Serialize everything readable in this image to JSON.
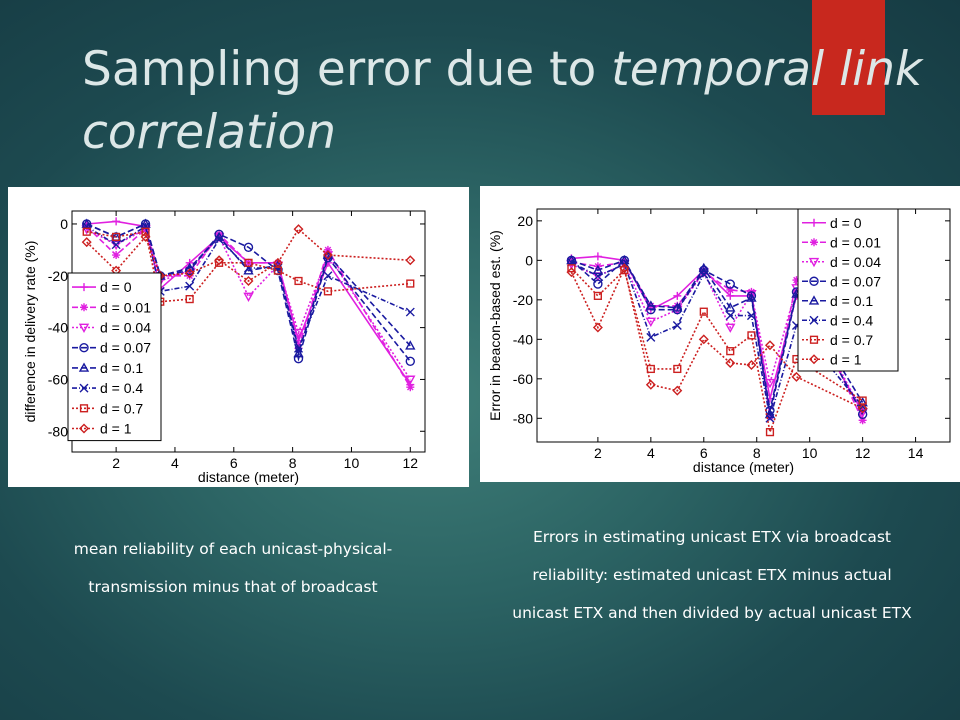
{
  "slide": {
    "title_part1": "Sampling error due to ",
    "title_part2": "temporal link correlation",
    "caption_left_line1": "mean reliability of each unicast-physical-",
    "caption_left_line2": "transmission minus that of broadcast",
    "caption_right_line1": "Errors in estimating unicast ETX via broadcast",
    "caption_right_line2": "reliability: estimated unicast ETX minus actual",
    "caption_right_line3": "unicast ETX and then divided by actual unicast ETX",
    "colors": {
      "accent": "#c8281e",
      "bg_center": "#3f7e78",
      "bg_edge": "#163b43"
    }
  },
  "chart_data": [
    {
      "type": "line",
      "xlabel": "distance (meter)",
      "ylabel": "difference in delivery rate (%)",
      "xlim": [
        0.5,
        12.5
      ],
      "ylim": [
        -88,
        5
      ],
      "xticks": [
        2,
        4,
        6,
        8,
        10,
        12
      ],
      "yticks": [
        0,
        -20,
        -40,
        -60,
        -80
      ],
      "legend": "left",
      "x": [
        1,
        2,
        3,
        3.5,
        4.5,
        5.5,
        6.5,
        7.5,
        8.2,
        9.2,
        12
      ],
      "series": [
        {
          "name": "d = 0",
          "color": "#e020e0",
          "dash": "",
          "marker": "plus",
          "values": [
            0,
            1,
            -1,
            -25,
            -15,
            -5,
            -15,
            -15,
            -45,
            -15,
            -62
          ]
        },
        {
          "name": "d = 0.01",
          "color": "#e020e0",
          "dash": "6,3",
          "marker": "star",
          "values": [
            -1,
            -12,
            -2,
            -20,
            -20,
            -4,
            -15,
            -15,
            -48,
            -10,
            -63
          ]
        },
        {
          "name": "d = 0.04",
          "color": "#e020e0",
          "dash": "2,2",
          "marker": "tri-down",
          "values": [
            -2,
            -8,
            -2,
            -22,
            -18,
            -5,
            -28,
            -16,
            -42,
            -12,
            -60
          ]
        },
        {
          "name": "d = 0.07",
          "color": "#1a1aa0",
          "dash": "6,3",
          "marker": "circle",
          "values": [
            0,
            -5,
            0,
            -20,
            -18,
            -4,
            -9,
            -18,
            -52,
            -13,
            -53
          ]
        },
        {
          "name": "d = 0.1",
          "color": "#1a1aa0",
          "dash": "6,3",
          "marker": "tri-up",
          "values": [
            0,
            -5,
            0,
            -20,
            -17,
            -5,
            -18,
            -16,
            -50,
            -12,
            -47
          ]
        },
        {
          "name": "d = 0.4",
          "color": "#1a1aa0",
          "dash": "5,2,1,2",
          "marker": "x",
          "values": [
            -1,
            -8,
            -1,
            -26,
            -24,
            -6,
            -17,
            -17,
            -48,
            -20,
            -34
          ]
        },
        {
          "name": "d = 0.7",
          "color": "#cc2020",
          "dash": "2,2",
          "marker": "square",
          "values": [
            -3,
            -5,
            -3,
            -30,
            -29,
            -15,
            -15,
            -18,
            -22,
            -26,
            -23
          ]
        },
        {
          "name": "d = 1",
          "color": "#cc2020",
          "dash": "2,2",
          "marker": "diamond",
          "values": [
            -7,
            -18,
            -5,
            -20,
            -19,
            -14,
            -22,
            -15,
            -2,
            -12,
            -14
          ]
        }
      ]
    },
    {
      "type": "line",
      "xlabel": "distance (meter)",
      "ylabel": "Error in beacon-based est. (%)",
      "xlim": [
        -0.3,
        15.3
      ],
      "ylim": [
        -92,
        26
      ],
      "xticks": [
        2,
        4,
        6,
        8,
        10,
        12,
        14
      ],
      "yticks": [
        20,
        0,
        -20,
        -40,
        -60,
        -80
      ],
      "legend": "top-right",
      "x": [
        1,
        2,
        3,
        4,
        5,
        6,
        7,
        7.8,
        8.5,
        9.5,
        12
      ],
      "series": [
        {
          "name": "d = 0",
          "color": "#e020e0",
          "dash": "",
          "marker": "plus",
          "values": [
            1,
            2,
            0,
            -25,
            -18,
            -5,
            -18,
            -18,
            -70,
            -18,
            -77
          ]
        },
        {
          "name": "d = 0.01",
          "color": "#e020e0",
          "dash": "6,3",
          "marker": "star",
          "values": [
            -1,
            -3,
            -1,
            -23,
            -23,
            -6,
            -15,
            -16,
            -79,
            -10,
            -81
          ]
        },
        {
          "name": "d = 0.04",
          "color": "#e020e0",
          "dash": "2,2",
          "marker": "tri-down",
          "values": [
            -2,
            -8,
            -2,
            -31,
            -25,
            -6,
            -34,
            -17,
            -62,
            -14,
            -77
          ]
        },
        {
          "name": "d = 0.07",
          "color": "#1a1aa0",
          "dash": "6,3",
          "marker": "circle",
          "values": [
            0,
            -12,
            0,
            -25,
            -25,
            -5,
            -12,
            -18,
            -76,
            -16,
            -78
          ]
        },
        {
          "name": "d = 0.1",
          "color": "#1a1aa0",
          "dash": "6,3",
          "marker": "tri-up",
          "values": [
            0,
            -5,
            0,
            -23,
            -24,
            -4,
            -24,
            -19,
            -78,
            -17,
            -72
          ]
        },
        {
          "name": "d = 0.4",
          "color": "#1a1aa0",
          "dash": "5,2,1,2",
          "marker": "x",
          "values": [
            -1,
            -8,
            -2,
            -39,
            -33,
            -7,
            -28,
            -28,
            -80,
            -33,
            -74
          ]
        },
        {
          "name": "d = 0.7",
          "color": "#cc2020",
          "dash": "2,2",
          "marker": "square",
          "values": [
            -4,
            -18,
            -5,
            -55,
            -55,
            -26,
            -46,
            -38,
            -87,
            -50,
            -71
          ]
        },
        {
          "name": "d = 1",
          "color": "#cc2020",
          "dash": "2,2",
          "marker": "diamond",
          "values": [
            -6,
            -34,
            -4,
            -63,
            -66,
            -40,
            -52,
            -53,
            -43,
            -59,
            -75
          ]
        }
      ]
    }
  ]
}
